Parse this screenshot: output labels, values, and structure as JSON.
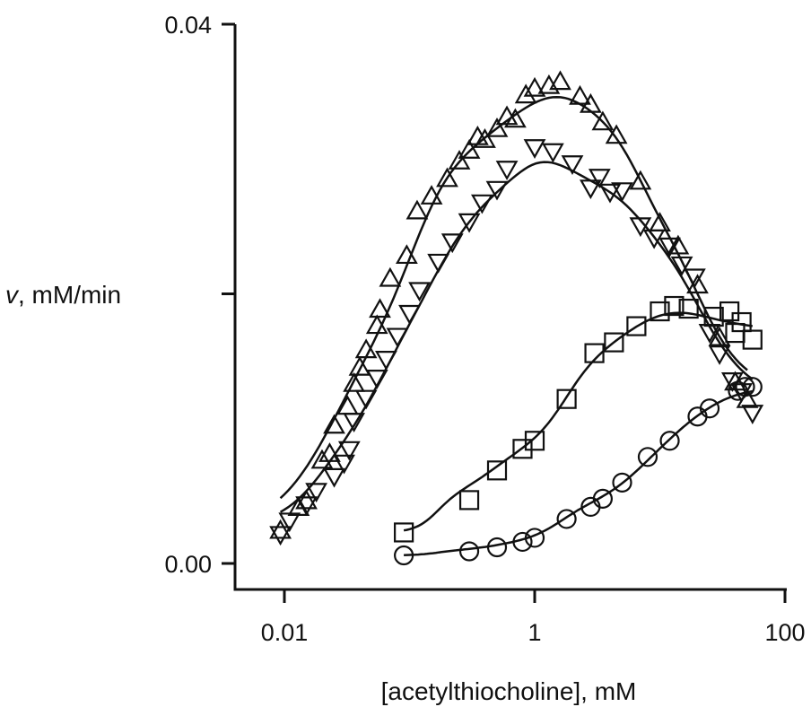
{
  "chart_data": {
    "type": "scatter",
    "title": "",
    "xlabel": "[acetylthiocholine], mM",
    "ylabel_var": "v",
    "ylabel_rest": ", mM/min",
    "xscale": "log",
    "xlim": [
      0.004,
      150
    ],
    "ylim": [
      0.0,
      0.04
    ],
    "x_ticks": [
      0.01,
      1,
      100
    ],
    "x_tick_labels": [
      "0.01",
      "1",
      "100"
    ],
    "y_ticks": [
      0.0,
      0.02,
      0.04
    ],
    "y_tick_labels": [
      "0.00",
      "",
      "0.04"
    ],
    "grid": false,
    "legend": "none",
    "series": [
      {
        "marker": "triangle-up",
        "points": [
          [
            0.0093,
            0.0024
          ],
          [
            0.013,
            0.0041
          ],
          [
            0.015,
            0.0046
          ],
          [
            0.02,
            0.0076
          ],
          [
            0.023,
            0.0081
          ],
          [
            0.025,
            0.0102
          ],
          [
            0.032,
            0.0116
          ],
          [
            0.036,
            0.0133
          ],
          [
            0.04,
            0.0145
          ],
          [
            0.045,
            0.0158
          ],
          [
            0.055,
            0.0176
          ],
          [
            0.058,
            0.0188
          ],
          [
            0.07,
            0.0211
          ],
          [
            0.095,
            0.0228
          ],
          [
            0.115,
            0.0261
          ],
          [
            0.15,
            0.0272
          ],
          [
            0.2,
            0.0285
          ],
          [
            0.25,
            0.0298
          ],
          [
            0.3,
            0.0306
          ],
          [
            0.35,
            0.0316
          ],
          [
            0.4,
            0.0314
          ],
          [
            0.5,
            0.0322
          ],
          [
            0.6,
            0.0331
          ],
          [
            0.7,
            0.0329
          ],
          [
            0.85,
            0.0347
          ],
          [
            1.0,
            0.0352
          ],
          [
            1.3,
            0.0354
          ],
          [
            1.6,
            0.0357
          ],
          [
            2.3,
            0.0346
          ],
          [
            2.8,
            0.034
          ],
          [
            3.5,
            0.0327
          ],
          [
            4.5,
            0.0317
          ],
          [
            7.0,
            0.0283
          ],
          [
            10.0,
            0.0252
          ],
          [
            14.0,
            0.0235
          ],
          [
            20.0,
            0.0206
          ],
          [
            30.0,
            0.0167
          ],
          [
            40.0,
            0.0134
          ],
          [
            50.0,
            0.0121
          ]
        ]
      },
      {
        "marker": "triangle-down",
        "points": [
          [
            0.0093,
            0.0022
          ],
          [
            0.011,
            0.0032
          ],
          [
            0.015,
            0.0044
          ],
          [
            0.018,
            0.0054
          ],
          [
            0.025,
            0.0065
          ],
          [
            0.03,
            0.0075
          ],
          [
            0.033,
            0.0085
          ],
          [
            0.036,
            0.0106
          ],
          [
            0.045,
            0.0123
          ],
          [
            0.055,
            0.0138
          ],
          [
            0.065,
            0.0152
          ],
          [
            0.08,
            0.0169
          ],
          [
            0.1,
            0.0186
          ],
          [
            0.12,
            0.0203
          ],
          [
            0.17,
            0.0224
          ],
          [
            0.22,
            0.0239
          ],
          [
            0.3,
            0.0254
          ],
          [
            0.38,
            0.0268
          ],
          [
            0.5,
            0.0278
          ],
          [
            0.6,
            0.0293
          ],
          [
            1.0,
            0.0309
          ],
          [
            1.4,
            0.0306
          ],
          [
            2.0,
            0.0297
          ],
          [
            2.8,
            0.0279
          ],
          [
            3.3,
            0.0287
          ],
          [
            4.0,
            0.0276
          ],
          [
            5.0,
            0.0277
          ],
          [
            7.0,
            0.0251
          ],
          [
            9.0,
            0.0242
          ],
          [
            12.0,
            0.0236
          ],
          [
            15.0,
            0.0222
          ],
          [
            19.0,
            0.0213
          ],
          [
            25.0,
            0.0172
          ],
          [
            30.0,
            0.0156
          ],
          [
            38.0,
            0.0136
          ],
          [
            45.0,
            0.0128
          ],
          [
            55.0,
            0.0112
          ]
        ]
      },
      {
        "marker": "square",
        "points": [
          [
            0.09,
            0.0023
          ],
          [
            0.3,
            0.0047
          ],
          [
            0.5,
            0.0069
          ],
          [
            0.8,
            0.0085
          ],
          [
            1.0,
            0.0091
          ],
          [
            1.8,
            0.0122
          ],
          [
            3.0,
            0.0156
          ],
          [
            4.3,
            0.0164
          ],
          [
            6.5,
            0.0176
          ],
          [
            10.0,
            0.0187
          ],
          [
            13.0,
            0.0191
          ],
          [
            17.0,
            0.0189
          ],
          [
            27.0,
            0.0183
          ],
          [
            36.0,
            0.0187
          ],
          [
            40.0,
            0.0171
          ],
          [
            45.0,
            0.0179
          ],
          [
            55.0,
            0.0166
          ]
        ]
      },
      {
        "marker": "circle",
        "points": [
          [
            0.09,
            0.0006
          ],
          [
            0.3,
            0.0009
          ],
          [
            0.5,
            0.0012
          ],
          [
            0.8,
            0.0016
          ],
          [
            1.0,
            0.0019
          ],
          [
            1.8,
            0.0033
          ],
          [
            2.8,
            0.0042
          ],
          [
            3.5,
            0.0048
          ],
          [
            5.0,
            0.006
          ],
          [
            8.0,
            0.0079
          ],
          [
            12.0,
            0.0091
          ],
          [
            20.0,
            0.0109
          ],
          [
            25.0,
            0.0115
          ],
          [
            42.0,
            0.0128
          ],
          [
            48.0,
            0.0131
          ],
          [
            55.0,
            0.0131
          ]
        ]
      }
    ]
  }
}
